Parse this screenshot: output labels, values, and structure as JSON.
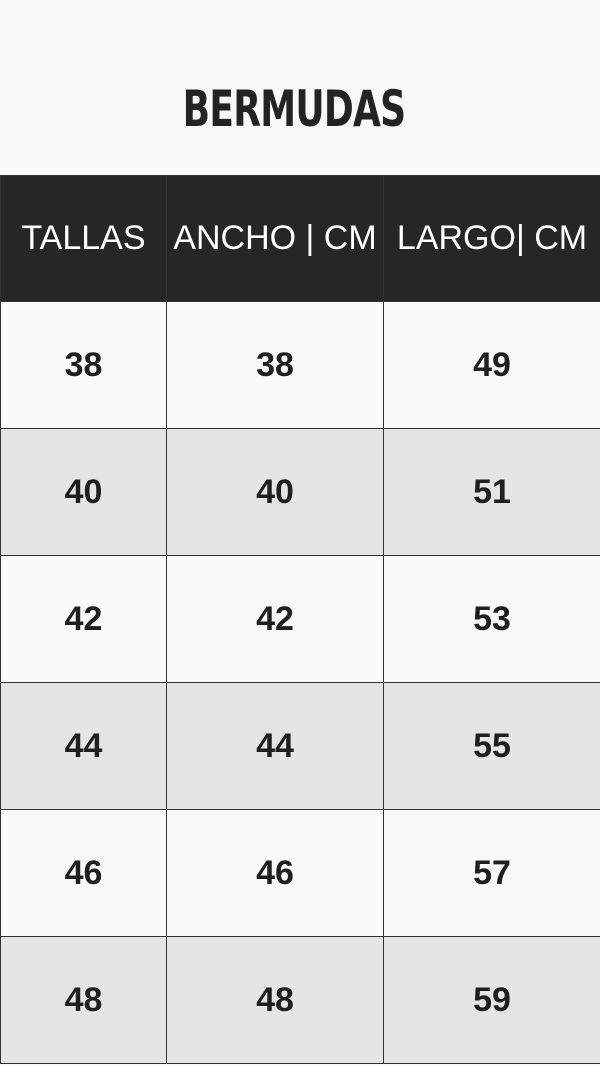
{
  "title": "BERMUDAS",
  "headers": [
    "TALLAS",
    "ANCHO | CM",
    "LARGO| CM"
  ],
  "rows": [
    [
      "38",
      "38",
      "49"
    ],
    [
      "40",
      "40",
      "51"
    ],
    [
      "42",
      "42",
      "53"
    ],
    [
      "44",
      "44",
      "55"
    ],
    [
      "46",
      "46",
      "57"
    ],
    [
      "48",
      "48",
      "59"
    ]
  ]
}
